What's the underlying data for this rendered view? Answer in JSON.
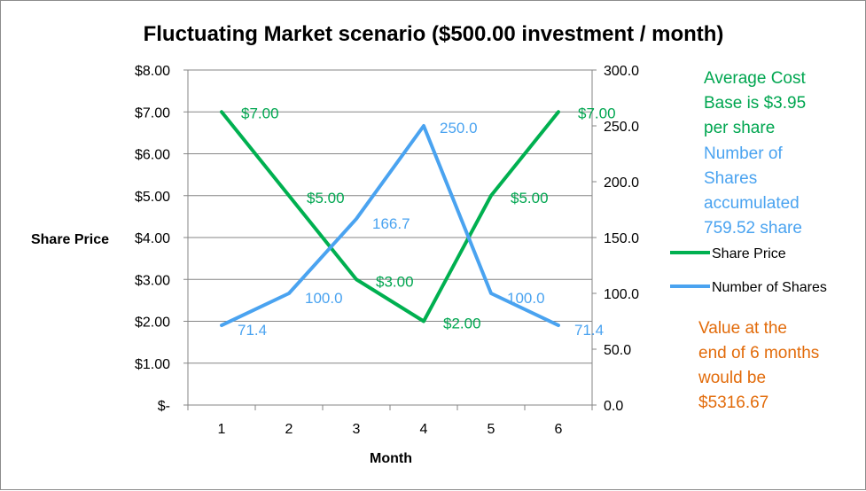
{
  "chart_data": {
    "type": "line",
    "title": "Fluctuating Market scenario ($500.00  investment / month)",
    "xlabel": "Month",
    "ylabel": "Share Price",
    "categories": [
      "1",
      "2",
      "3",
      "4",
      "5",
      "6"
    ],
    "y_left": {
      "min": 0,
      "max": 8,
      "step": 1,
      "tick_labels": [
        "$-",
        "$1.00",
        "$2.00",
        "$3.00",
        "$4.00",
        "$5.00",
        "$6.00",
        "$7.00",
        "$8.00"
      ]
    },
    "y_right": {
      "min": 0,
      "max": 300,
      "step": 50,
      "tick_labels": [
        "0.0",
        "50.0",
        "100.0",
        "150.0",
        "200.0",
        "250.0",
        "300.0"
      ]
    },
    "grid": true,
    "legend_position": "right",
    "series": [
      {
        "name": "Share Price",
        "axis": "left",
        "color": "#00b050",
        "values": [
          7,
          5,
          3,
          2,
          5,
          7
        ],
        "labels": [
          "$7.00",
          "$5.00",
          "$3.00",
          "$2.00",
          "$5.00",
          "$7.00"
        ]
      },
      {
        "name": "Number of Shares",
        "axis": "right",
        "color": "#4aa3f0",
        "values": [
          71.4,
          100.0,
          166.7,
          250.0,
          100.0,
          71.4
        ],
        "labels": [
          "71.4",
          "100.0",
          "166.7",
          "250.0",
          "100.0",
          "71.4"
        ]
      }
    ],
    "annotations": [
      {
        "color": "#00a650",
        "lines": [
          "Average Cost",
          "Base is $3.95",
          "per share"
        ]
      },
      {
        "color": "#4aa3f0",
        "lines": [
          "Number of",
          "Shares",
          "accumulated",
          "759.52 share"
        ]
      },
      {
        "color": "#e26b0a",
        "lines": [
          "Value at the",
          "end of 6 months",
          "would be",
          "$5316.67"
        ]
      }
    ]
  }
}
